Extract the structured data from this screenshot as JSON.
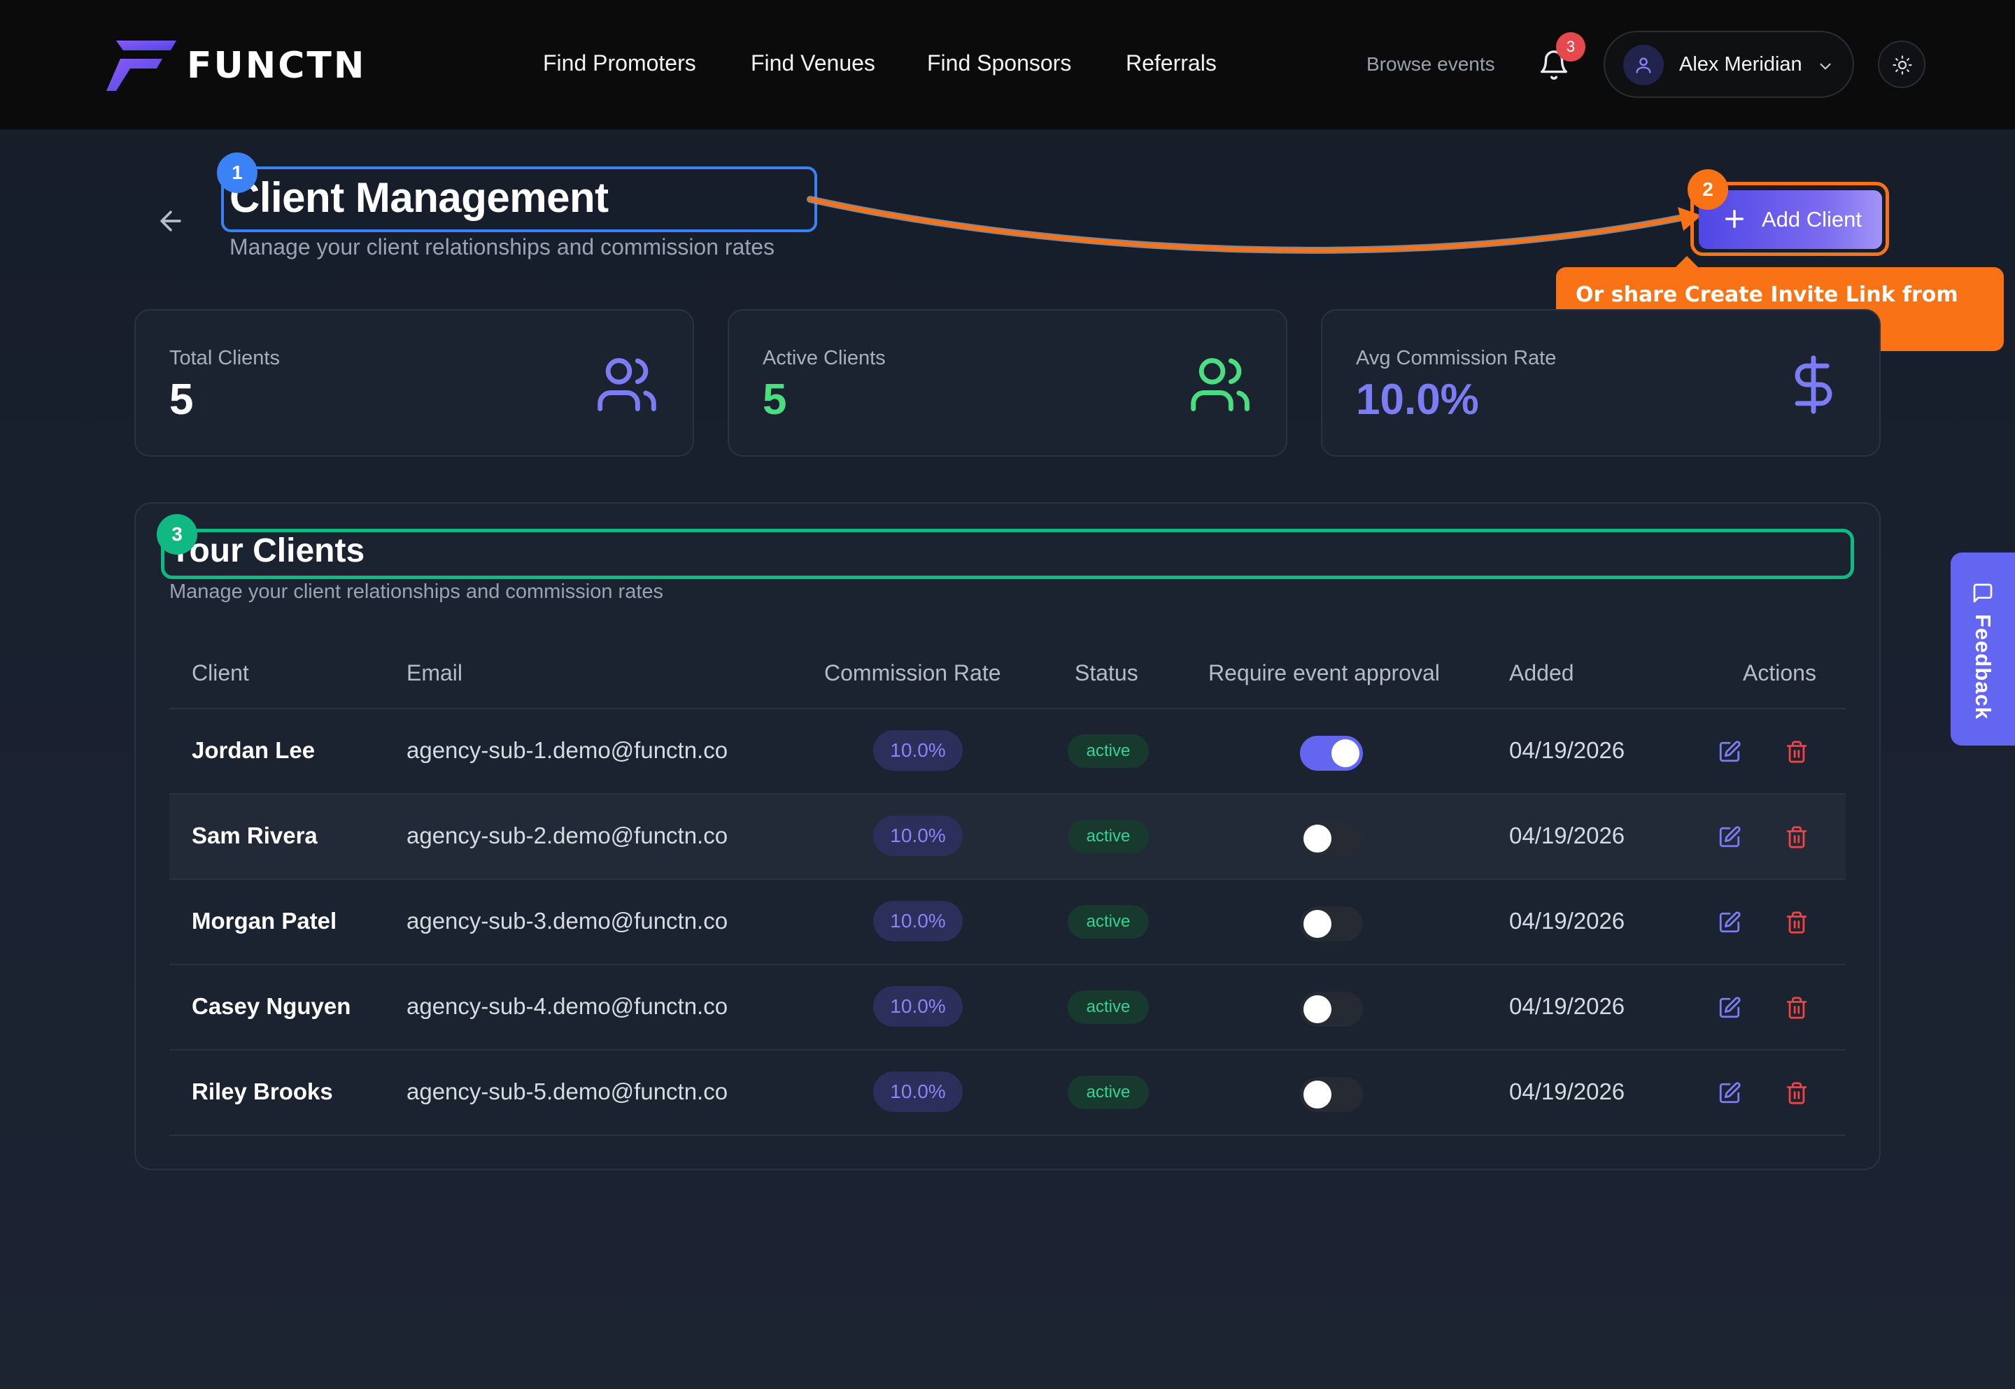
{
  "brand": {
    "name": "FUNCTN",
    "accent": "#6366f1"
  },
  "nav": {
    "links": [
      "Find Promoters",
      "Find Venues",
      "Find Sponsors",
      "Referrals"
    ],
    "browse": "Browse events",
    "notifications": {
      "icon": "bell-icon",
      "count": "3"
    },
    "user": {
      "name": "Alex Meridian",
      "icon": "user-icon"
    },
    "theme_icon": "sun-icon"
  },
  "page": {
    "title": "Client Management",
    "subtitle": "Manage your client relationships and commission rates",
    "add_button": "Add Client"
  },
  "guide": {
    "steps": [
      "1",
      "2",
      "3"
    ],
    "tooltip": "Or share Create Invite Link from Agency Dashboard",
    "colors": {
      "step1": "#3b82f6",
      "step2": "#f97316",
      "step3": "#10b981"
    }
  },
  "stats": [
    {
      "label": "Total Clients",
      "value": "5",
      "icon": "users-icon",
      "color": "#ffffff",
      "icon_color": "#7c7cf5"
    },
    {
      "label": "Active Clients",
      "value": "5",
      "icon": "users-icon",
      "color": "#4ade80",
      "icon_color": "#4ade80"
    },
    {
      "label": "Avg Commission Rate",
      "value": "10.0%",
      "icon": "dollar-icon",
      "color": "#7c7cf5",
      "icon_color": "#7c7cf5"
    }
  ],
  "clients": {
    "title": "Your Clients",
    "subtitle": "Manage your client relationships and commission rates",
    "columns": [
      "Client",
      "Email",
      "Commission Rate",
      "Status",
      "Require event approval",
      "Added",
      "Actions"
    ],
    "rows": [
      {
        "name": "Jordan Lee",
        "email": "agency-sub-1.demo@functn.co",
        "rate": "10.0%",
        "status": "active",
        "approval": true,
        "added": "04/19/2026"
      },
      {
        "name": "Sam Rivera",
        "email": "agency-sub-2.demo@functn.co",
        "rate": "10.0%",
        "status": "active",
        "approval": false,
        "added": "04/19/2026"
      },
      {
        "name": "Morgan Patel",
        "email": "agency-sub-3.demo@functn.co",
        "rate": "10.0%",
        "status": "active",
        "approval": false,
        "added": "04/19/2026"
      },
      {
        "name": "Casey Nguyen",
        "email": "agency-sub-4.demo@functn.co",
        "rate": "10.0%",
        "status": "active",
        "approval": false,
        "added": "04/19/2026"
      },
      {
        "name": "Riley Brooks",
        "email": "agency-sub-5.demo@functn.co",
        "rate": "10.0%",
        "status": "active",
        "approval": false,
        "added": "04/19/2026"
      }
    ]
  },
  "feedback": {
    "label": "Feedback",
    "icon": "message-icon"
  }
}
